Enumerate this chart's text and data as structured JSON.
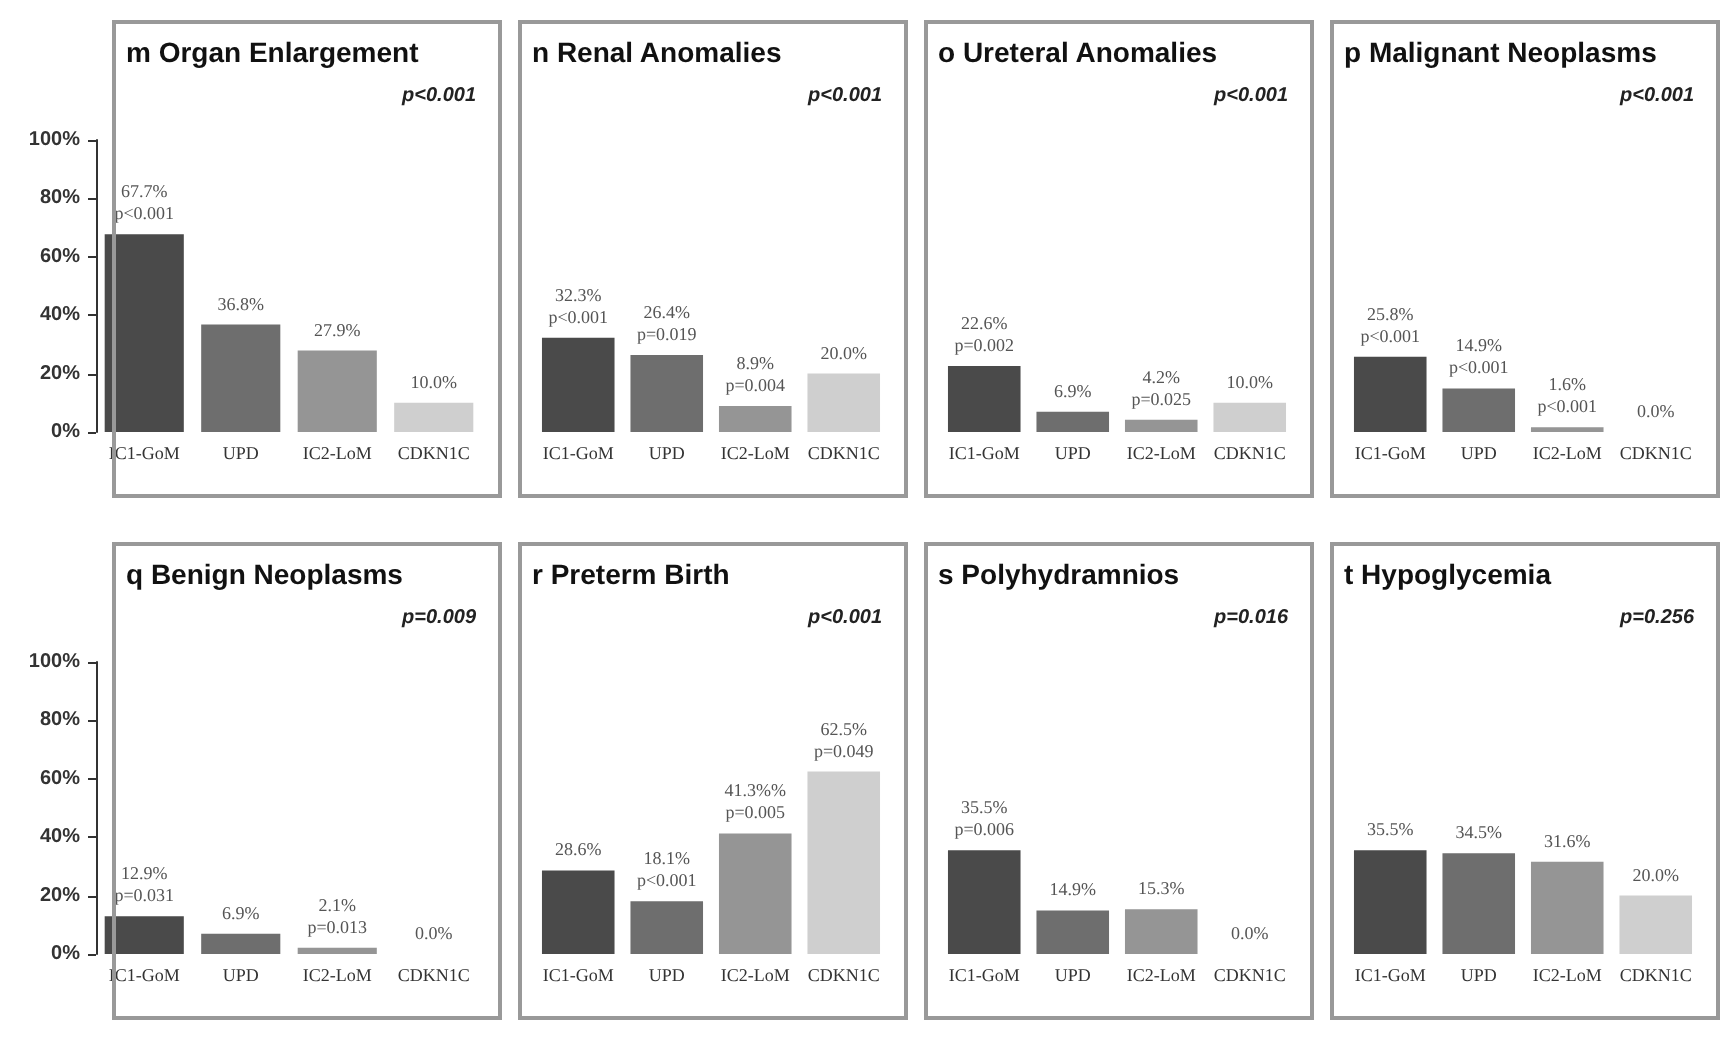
{
  "chart_data": [
    {
      "type": "bar",
      "title": "m Organ Enlargement",
      "annotations": [
        "p<0.001"
      ],
      "categories": [
        "IC1-GoM",
        "UPD",
        "IC2-LoM",
        "CDKN1C"
      ],
      "values": [
        67.7,
        36.8,
        27.9,
        10.0
      ],
      "colors": [
        "#4a4a4a",
        "#6e6e6e",
        "#959595",
        "#cfcfcf"
      ],
      "value_labels": [
        "67.7%\np<0.001",
        "36.8%",
        "27.9%",
        "10.0%"
      ],
      "ylim": [
        0,
        100
      ],
      "yticks": [
        {
          "value": 0,
          "label": "0%"
        },
        {
          "value": 20,
          "label": "20%"
        },
        {
          "value": 40,
          "label": "40%"
        },
        {
          "value": 60,
          "label": "60%"
        },
        {
          "value": 80,
          "label": "80%"
        },
        {
          "value": 100,
          "label": "100%"
        }
      ]
    },
    {
      "type": "bar",
      "title": "n Renal Anomalies",
      "annotations": [
        "p<0.001"
      ],
      "categories": [
        "IC1-GoM",
        "UPD",
        "IC2-LoM",
        "CDKN1C"
      ],
      "values": [
        32.3,
        26.4,
        8.9,
        20.0
      ],
      "colors": [
        "#4a4a4a",
        "#6e6e6e",
        "#959595",
        "#cfcfcf"
      ],
      "value_labels": [
        "32.3%\np<0.001",
        "26.4%\np=0.019",
        "8.9%\np=0.004",
        "20.0%"
      ],
      "ylim": [
        0,
        100
      ],
      "tick_labels": "x"
    },
    {
      "type": "bar",
      "title": "o Ureteral Anomalies",
      "annotations": [
        "p<0.001"
      ],
      "categories": [
        "IC1-GoM",
        "UPD",
        "IC2-LoM",
        "CDKN1C"
      ],
      "values": [
        22.6,
        6.9,
        4.2,
        10.0
      ],
      "colors": [
        "#4a4a4a",
        "#6e6e6e",
        "#959595",
        "#cfcfcf"
      ],
      "value_labels": [
        "22.6%\np=0.002",
        "6.9%",
        "4.2%\np=0.025",
        "10.0%"
      ],
      "ylim": [
        0,
        100
      ],
      "tick_labels": "x"
    },
    {
      "type": "bar",
      "title": "p Malignant Neoplasms",
      "annotations": [
        "p<0.001"
      ],
      "categories": [
        "IC1-GoM",
        "UPD",
        "IC2-LoM",
        "CDKN1C"
      ],
      "values": [
        25.8,
        14.9,
        1.6,
        0.0
      ],
      "colors": [
        "#4a4a4a",
        "#6e6e6e",
        "#959595",
        "#cfcfcf"
      ],
      "value_labels": [
        "25.8%\np<0.001",
        "14.9%\np<0.001",
        "1.6%\np<0.001",
        "0.0%"
      ],
      "ylim": [
        0,
        100
      ],
      "tick_labels": "x"
    },
    {
      "type": "bar",
      "title": "q Benign Neoplasms",
      "annotations": [
        "p=0.009"
      ],
      "categories": [
        "IC1-GoM",
        "UPD",
        "IC2-LoM",
        "CDKN1C"
      ],
      "values": [
        12.9,
        6.9,
        2.1,
        0.0
      ],
      "colors": [
        "#4a4a4a",
        "#6e6e6e",
        "#959595",
        "#cfcfcf"
      ],
      "value_labels": [
        "12.9%\np=0.031",
        "6.9%",
        "2.1%\np=0.013",
        "0.0%"
      ],
      "ylim": [
        0,
        100
      ],
      "yticks": [
        {
          "value": 0,
          "label": "0%"
        },
        {
          "value": 20,
          "label": "20%"
        },
        {
          "value": 40,
          "label": "40%"
        },
        {
          "value": 60,
          "label": "60%"
        },
        {
          "value": 80,
          "label": "80%"
        },
        {
          "value": 100,
          "label": "100%"
        }
      ]
    },
    {
      "type": "bar",
      "title": "r Preterm Birth",
      "annotations": [
        "p<0.001"
      ],
      "categories": [
        "IC1-GoM",
        "UPD",
        "IC2-LoM",
        "CDKN1C"
      ],
      "values": [
        28.6,
        18.1,
        41.3,
        62.5
      ],
      "colors": [
        "#4a4a4a",
        "#6e6e6e",
        "#959595",
        "#cfcfcf"
      ],
      "value_labels": [
        "28.6%",
        "18.1%\np<0.001",
        "41.3%%\np=0.005",
        "62.5%\np=0.049"
      ],
      "ylim": [
        0,
        100
      ],
      "tick_labels": "x"
    },
    {
      "type": "bar",
      "title": "s Polyhydramnios",
      "annotations": [
        "p=0.016"
      ],
      "categories": [
        "IC1-GoM",
        "UPD",
        "IC2-LoM",
        "CDKN1C"
      ],
      "values": [
        35.5,
        14.9,
        15.3,
        0.0
      ],
      "colors": [
        "#4a4a4a",
        "#6e6e6e",
        "#959595",
        "#cfcfcf"
      ],
      "value_labels": [
        "35.5%\np=0.006",
        "14.9%",
        "15.3%",
        "0.0%"
      ],
      "ylim": [
        0,
        100
      ],
      "tick_labels": "x"
    },
    {
      "type": "bar",
      "title": "t Hypoglycemia",
      "annotations": [
        "p=0.256"
      ],
      "categories": [
        "IC1-GoM",
        "UPD",
        "IC2-LoM",
        "CDKN1C"
      ],
      "values": [
        35.5,
        34.5,
        31.6,
        20.0
      ],
      "colors": [
        "#4a4a4a",
        "#6e6e6e",
        "#959595",
        "#cfcfcf"
      ],
      "value_labels": [
        "35.5%",
        "34.5%",
        "31.6%",
        "20.0%"
      ],
      "ylim": [
        0,
        100
      ],
      "tick_labels": "x"
    }
  ]
}
